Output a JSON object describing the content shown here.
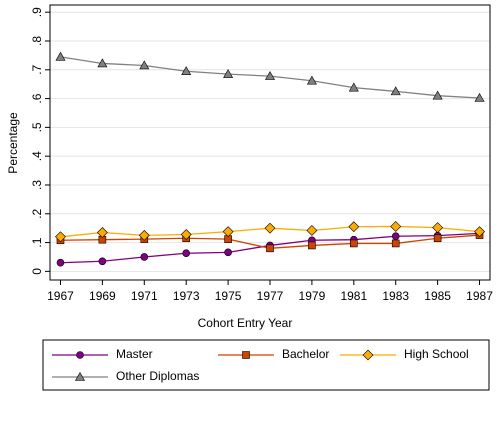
{
  "chart_data": {
    "type": "line",
    "x_label": "Cohort Entry Year",
    "y_label": "Percentage",
    "x": [
      1967,
      1969,
      1971,
      1973,
      1975,
      1977,
      1979,
      1981,
      1983,
      1985,
      1987
    ],
    "series": [
      {
        "name": "Master",
        "color": "#800080",
        "marker": "circle",
        "values": [
          0.03,
          0.035,
          0.05,
          0.063,
          0.066,
          0.09,
          0.108,
          0.11,
          0.122,
          0.124,
          0.132
        ]
      },
      {
        "name": "Bachelor",
        "color": "#cc4400",
        "marker": "square",
        "values": [
          0.108,
          0.11,
          0.112,
          0.115,
          0.112,
          0.08,
          0.09,
          0.097,
          0.097,
          0.115,
          0.126
        ]
      },
      {
        "name": "High School",
        "color": "#ffaa00",
        "marker": "diamond",
        "values": [
          0.12,
          0.135,
          0.125,
          0.128,
          0.138,
          0.15,
          0.142,
          0.155,
          0.156,
          0.152,
          0.138
        ]
      },
      {
        "name": "Other Diplomas",
        "color": "#808080",
        "marker": "triangle",
        "values": [
          0.745,
          0.722,
          0.715,
          0.695,
          0.685,
          0.678,
          0.662,
          0.638,
          0.625,
          0.61,
          0.602
        ]
      }
    ],
    "xlim": [
      1966.5,
      1987.5
    ],
    "xticks": [
      1967,
      1969,
      1971,
      1973,
      1975,
      1977,
      1979,
      1981,
      1983,
      1985,
      1987
    ],
    "ylim": [
      -0.03,
      0.925
    ],
    "yticks": [
      0,
      {
        "value": 0.1,
        "label": ".1"
      },
      {
        "value": 0.2,
        "label": ".2"
      },
      {
        "value": 0.3,
        "label": ".3"
      },
      {
        "value": 0.4,
        "label": ".4"
      },
      {
        "value": 0.5,
        "label": ".5"
      },
      {
        "value": 0.6,
        "label": ".6"
      },
      {
        "value": 0.7,
        "label": ".7"
      },
      {
        "value": 0.8,
        "label": ".8"
      },
      {
        "value": 0.9,
        "label": ".9"
      }
    ],
    "grid": true,
    "legend": "bottom"
  }
}
